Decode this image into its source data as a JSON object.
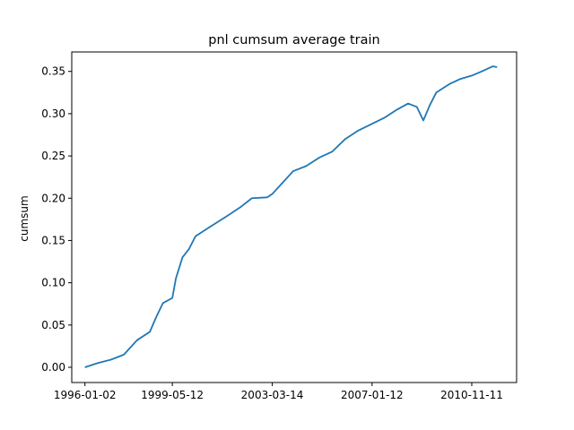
{
  "chart_data": {
    "type": "line",
    "title": "pnl cumsum average train",
    "xlabel": "",
    "ylabel": "cumsum",
    "x_tick_labels": [
      "1996-01-02",
      "1999-05-12",
      "2003-03-14",
      "2007-01-12",
      "2010-11-11"
    ],
    "y_tick_labels": [
      "0.00",
      "0.05",
      "0.10",
      "0.15",
      "0.20",
      "0.25",
      "0.30",
      "0.35"
    ],
    "xlim": [
      "1995-07-01",
      "2012-08-01"
    ],
    "ylim": [
      -0.018,
      0.373
    ],
    "grid": false,
    "line_color": "#1f77b4",
    "series": [
      {
        "x": [
          "1996-01-02",
          "1996-07-01",
          "1997-01-01",
          "1997-07-01",
          "1998-01-01",
          "1998-07-01",
          "1998-10-01",
          "1999-01-01",
          "1999-05-12",
          "1999-07-01",
          "1999-10-01",
          "2000-01-01",
          "2000-04-01",
          "2000-07-01",
          "2000-10-01",
          "2001-01-01",
          "2001-06-01",
          "2002-01-01",
          "2002-06-01",
          "2003-01-01",
          "2003-03-14",
          "2003-07-01",
          "2004-01-01",
          "2004-07-01",
          "2005-01-01",
          "2005-07-01",
          "2006-01-01",
          "2006-07-01",
          "2007-01-12",
          "2007-07-01",
          "2008-01-01",
          "2008-06-01",
          "2008-10-01",
          "2009-01-01",
          "2009-04-01",
          "2009-07-01",
          "2010-01-01",
          "2010-06-01",
          "2010-11-11",
          "2011-04-01",
          "2011-09-01",
          "2011-11-01"
        ],
        "y": [
          0.0,
          0.005,
          0.009,
          0.015,
          0.032,
          0.042,
          0.06,
          0.076,
          0.082,
          0.105,
          0.13,
          0.14,
          0.155,
          0.16,
          0.165,
          0.17,
          0.178,
          0.19,
          0.2,
          0.201,
          0.205,
          0.215,
          0.232,
          0.238,
          0.248,
          0.255,
          0.27,
          0.28,
          0.288,
          0.295,
          0.305,
          0.312,
          0.308,
          0.292,
          0.31,
          0.325,
          0.335,
          0.341,
          0.345,
          0.35,
          0.356,
          0.355
        ]
      }
    ]
  }
}
